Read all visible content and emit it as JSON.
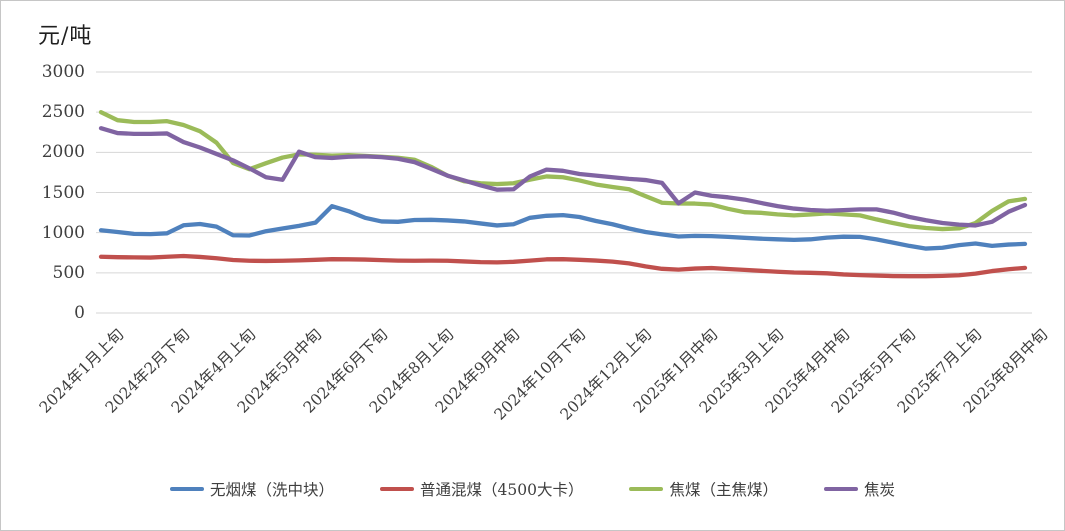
{
  "chart_data": {
    "type": "line",
    "title": "",
    "ylabel": "元/吨",
    "xlabel": "",
    "ylim": [
      0,
      3000
    ],
    "yticks": [
      0,
      500,
      1000,
      1500,
      2000,
      2500,
      3000
    ],
    "grid": true,
    "legend_position": "bottom",
    "x_label_interval": 4,
    "visible_x_tick_labels": [
      "2024年1月上旬",
      "2024年2月下旬",
      "2024年4月上旬",
      "2024年5月中旬",
      "2024年6月下旬",
      "2024年8月上旬",
      "2024年9月中旬",
      "2024年10月下旬",
      "2024年12月上旬",
      "2025年1月中旬",
      "2025年3月上旬",
      "2025年4月中旬",
      "2025年5月下旬",
      "2025年7月上旬",
      "2025年8月中旬"
    ],
    "categories": [
      "2024年1月上旬",
      "2024年1月中旬",
      "2024年1月下旬",
      "2024年2月上旬",
      "2024年2月下旬",
      "2024年3月上旬",
      "2024年3月中旬",
      "2024年3月下旬",
      "2024年4月上旬",
      "2024年4月中旬",
      "2024年4月下旬",
      "2024年5月上旬",
      "2024年5月中旬",
      "2024年5月下旬",
      "2024年6月上旬",
      "2024年6月中旬",
      "2024年6月下旬",
      "2024年7月上旬",
      "2024年7月中旬",
      "2024年7月下旬",
      "2024年8月上旬",
      "2024年8月中旬",
      "2024年8月下旬",
      "2024年9月上旬",
      "2024年9月中旬",
      "2024年9月下旬",
      "2024年10月上旬",
      "2024年10月中旬",
      "2024年10月下旬",
      "2024年11月上旬",
      "2024年11月中旬",
      "2024年11月下旬",
      "2024年12月上旬",
      "2024年12月中旬",
      "2024年12月下旬",
      "2025年1月上旬",
      "2025年1月中旬",
      "2025年1月下旬",
      "2025年2月上旬",
      "2025年2月下旬",
      "2025年3月上旬",
      "2025年3月中旬",
      "2025年3月下旬",
      "2025年4月上旬",
      "2025年4月中旬",
      "2025年4月下旬",
      "2025年5月上旬",
      "2025年5月中旬",
      "2025年5月下旬",
      "2025年6月上旬",
      "2025年6月中旬",
      "2025年6月下旬",
      "2025年7月上旬",
      "2025年7月中旬",
      "2025年7月下旬",
      "2025年8月上旬",
      "2025年8月中旬"
    ],
    "series": [
      {
        "name": "无烟煤（洗中块）",
        "color": "#4F81BD",
        "values": [
          1030,
          1008,
          985,
          982,
          992,
          1092,
          1108,
          1075,
          968,
          965,
          1018,
          1052,
          1085,
          1125,
          1330,
          1268,
          1185,
          1140,
          1135,
          1158,
          1160,
          1152,
          1140,
          1115,
          1090,
          1105,
          1185,
          1210,
          1218,
          1195,
          1145,
          1105,
          1052,
          1008,
          978,
          952,
          960,
          957,
          948,
          936,
          925,
          917,
          910,
          917,
          938,
          950,
          948,
          917,
          876,
          835,
          802,
          812,
          845,
          865,
          836,
          852,
          860
        ]
      },
      {
        "name": "普通混煤（4500大卡）",
        "color": "#C0504D",
        "values": [
          700,
          695,
          692,
          690,
          700,
          710,
          698,
          682,
          660,
          650,
          648,
          650,
          655,
          662,
          670,
          668,
          665,
          658,
          652,
          650,
          652,
          650,
          642,
          633,
          630,
          637,
          652,
          668,
          670,
          662,
          653,
          640,
          618,
          580,
          550,
          540,
          553,
          560,
          548,
          537,
          525,
          513,
          504,
          500,
          494,
          480,
          471,
          466,
          460,
          458,
          458,
          462,
          470,
          490,
          522,
          545,
          562
        ]
      },
      {
        "name": "焦煤（主焦煤）",
        "color": "#9BBB59",
        "values": [
          2500,
          2400,
          2378,
          2378,
          2388,
          2340,
          2262,
          2120,
          1868,
          1790,
          1865,
          1935,
          1975,
          1970,
          1958,
          1965,
          1955,
          1945,
          1933,
          1908,
          1820,
          1710,
          1640,
          1615,
          1605,
          1615,
          1660,
          1700,
          1690,
          1650,
          1600,
          1568,
          1540,
          1455,
          1372,
          1363,
          1362,
          1350,
          1297,
          1255,
          1247,
          1228,
          1215,
          1227,
          1240,
          1228,
          1215,
          1165,
          1120,
          1080,
          1058,
          1045,
          1053,
          1120,
          1270,
          1390,
          1420
        ]
      },
      {
        "name": "焦炭",
        "color": "#8064A2",
        "values": [
          2300,
          2240,
          2230,
          2230,
          2235,
          2128,
          2060,
          1980,
          1900,
          1800,
          1690,
          1658,
          2008,
          1940,
          1930,
          1945,
          1950,
          1940,
          1920,
          1878,
          1795,
          1710,
          1650,
          1590,
          1535,
          1540,
          1700,
          1785,
          1770,
          1730,
          1710,
          1690,
          1670,
          1655,
          1620,
          1365,
          1500,
          1460,
          1440,
          1412,
          1370,
          1330,
          1300,
          1282,
          1272,
          1281,
          1290,
          1290,
          1250,
          1195,
          1155,
          1120,
          1100,
          1090,
          1135,
          1260,
          1345
        ]
      }
    ]
  }
}
